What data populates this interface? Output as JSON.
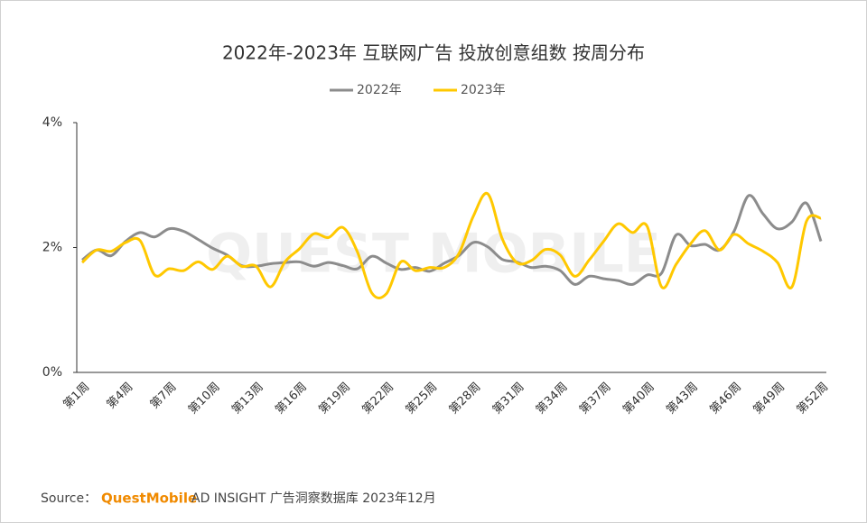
{
  "chart_data": {
    "type": "line",
    "title": "2022年-2023年 互联网广告 投放创意组数 按周分布",
    "watermark": "QUEST MOBILE",
    "categories": [
      "第1周",
      null,
      null,
      "第4周",
      null,
      null,
      "第7周",
      null,
      null,
      "第10周",
      null,
      null,
      "第13周",
      null,
      null,
      "第16周",
      null,
      null,
      "第19周",
      null,
      null,
      "第22周",
      null,
      null,
      "第25周",
      null,
      null,
      "第28周",
      null,
      null,
      "第31周",
      null,
      null,
      "第34周",
      null,
      null,
      "第37周",
      null,
      null,
      "第40周",
      null,
      null,
      "第43周",
      null,
      null,
      "第46周",
      null,
      null,
      "第49周",
      null,
      null,
      "第52周"
    ],
    "series": [
      {
        "name": "2022年",
        "color": "#8c8c8c",
        "values": [
          1.8,
          1.96,
          1.87,
          2.1,
          2.24,
          2.17,
          2.3,
          2.26,
          2.13,
          1.99,
          1.88,
          1.71,
          1.7,
          1.74,
          1.76,
          1.77,
          1.7,
          1.76,
          1.71,
          1.66,
          1.86,
          1.75,
          1.65,
          1.68,
          1.62,
          1.75,
          1.87,
          2.08,
          2.01,
          1.81,
          1.77,
          1.68,
          1.7,
          1.63,
          1.41,
          1.54,
          1.5,
          1.47,
          1.41,
          1.56,
          1.59,
          2.2,
          2.03,
          2.05,
          1.96,
          2.26,
          2.83,
          2.54,
          2.3,
          2.41,
          2.71,
          2.1
        ]
      },
      {
        "name": "2023年",
        "color": "#ffc800",
        "values": [
          1.76,
          1.96,
          1.94,
          2.08,
          2.11,
          1.56,
          1.66,
          1.63,
          1.77,
          1.65,
          1.86,
          1.7,
          1.7,
          1.37,
          1.77,
          1.98,
          2.22,
          2.16,
          2.32,
          1.93,
          1.27,
          1.26,
          1.77,
          1.63,
          1.68,
          1.68,
          1.9,
          2.5,
          2.86,
          2.14,
          1.76,
          1.79,
          1.97,
          1.88,
          1.54,
          1.8,
          2.1,
          2.38,
          2.24,
          2.34,
          1.37,
          1.73,
          2.06,
          2.27,
          1.96,
          2.21,
          2.06,
          1.94,
          1.76,
          1.37,
          2.42,
          2.47
        ]
      }
    ],
    "ylim": [
      0,
      4
    ],
    "yticks": [
      {
        "value": 0,
        "label": "0%"
      },
      {
        "value": 2,
        "label": "2%"
      },
      {
        "value": 4,
        "label": "4%"
      }
    ],
    "legend": "top",
    "source": {
      "prefix": "Source：",
      "brand": "QuestMobile",
      "text": "AD INSIGHT 广告洞察数据库 2023年12月"
    }
  }
}
